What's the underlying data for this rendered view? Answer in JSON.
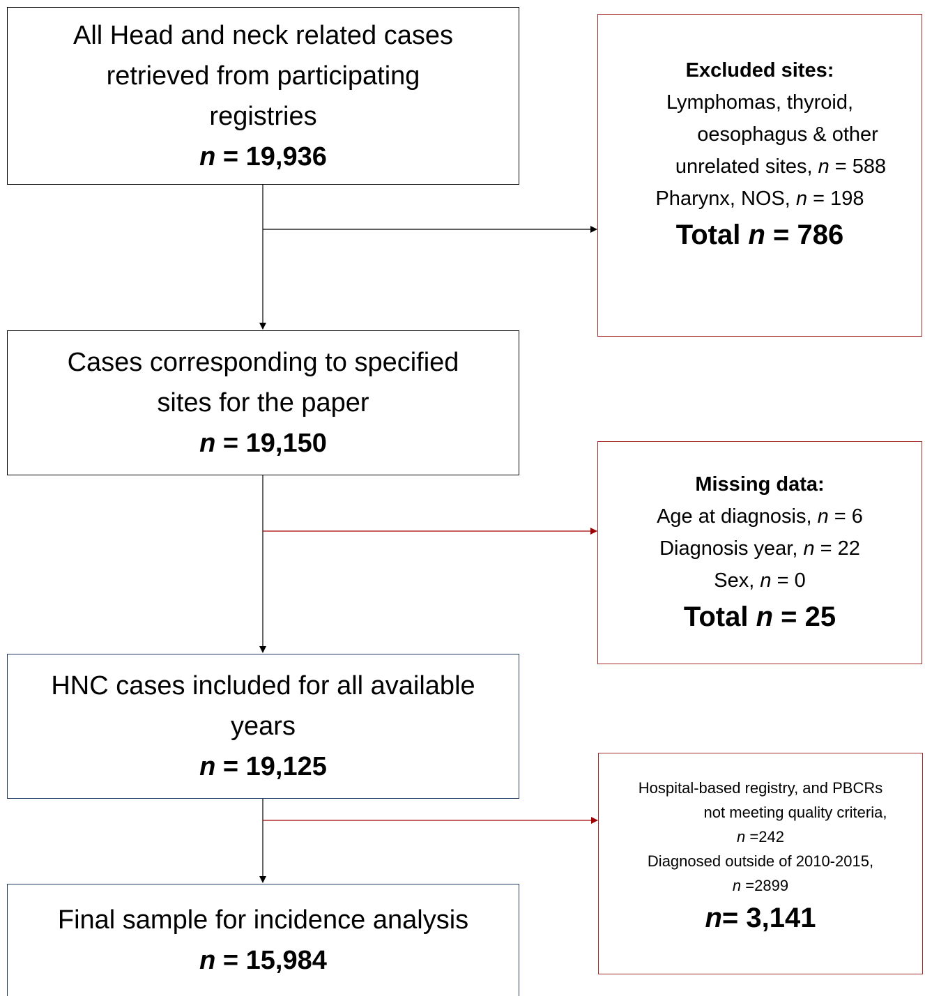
{
  "main_boxes": [
    {
      "lines": [
        "All Head and neck related cases",
        "retrieved from participating",
        "registries"
      ],
      "count": [
        "n",
        " = 19,936"
      ]
    },
    {
      "lines": [
        "Cases corresponding to specified",
        "sites for the paper"
      ],
      "count": [
        "n",
        " = 19,150"
      ]
    },
    {
      "lines": [
        "HNC cases included for all available",
        "years"
      ],
      "count": [
        "n",
        " = 19,125"
      ]
    },
    {
      "lines": [
        "Final sample for incidence analysis"
      ],
      "count": [
        "n",
        " = 15,984"
      ]
    }
  ],
  "side_boxes": [
    {
      "heading": "Excluded sites:",
      "lines": [
        [
          "Lymphomas, thyroid,"
        ],
        [
          "oesophagus & other"
        ],
        [
          "unrelated sites, ",
          "n",
          " = 588"
        ],
        [
          "Pharynx, NOS, ",
          "n",
          " = 198"
        ]
      ],
      "total": [
        "Total ",
        "n",
        " = 786"
      ]
    },
    {
      "heading": "Missing data:",
      "lines": [
        [
          "Age at diagnosis, ",
          "n",
          " = 6"
        ],
        [
          "Diagnosis year, ",
          "n",
          " = 22"
        ],
        [
          "Sex, ",
          "n",
          " = 0"
        ]
      ],
      "total": [
        "Total ",
        "n",
        " = 25"
      ]
    },
    {
      "lines": [
        [
          "Hospital-based registry, and PBCRs"
        ],
        [
          "not meeting quality criteria,"
        ],
        [
          "n",
          " =242"
        ],
        [
          "Diagnosed outside of 2010-2015,"
        ],
        [
          "n",
          " =2899"
        ]
      ],
      "total": [
        "n",
        "= 3,141"
      ]
    }
  ]
}
